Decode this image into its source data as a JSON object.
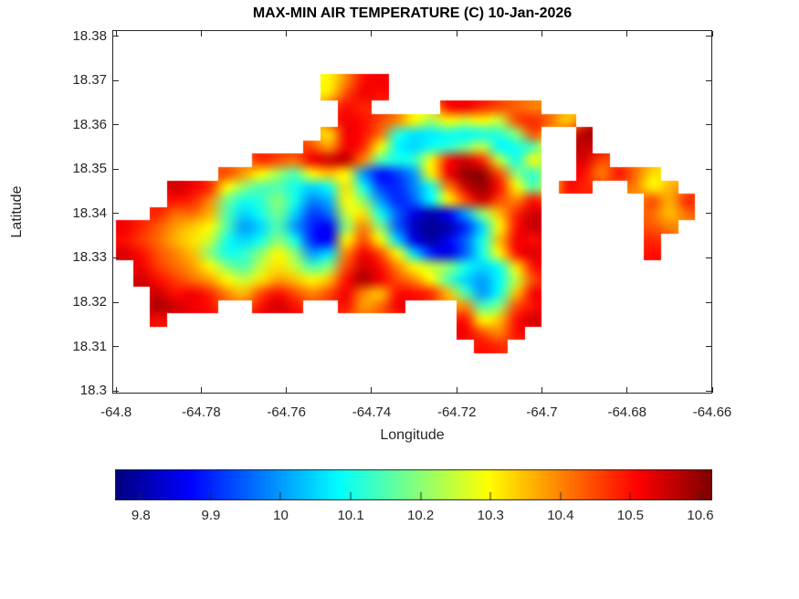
{
  "title": "MAX-MIN AIR TEMPERATURE (C) 10-Jan-2026",
  "xlabel": "Longitude",
  "ylabel": "Latitude",
  "style": {
    "text_color": "#262626",
    "title_color": "#000000",
    "background": "#ffffff"
  },
  "chart_data": {
    "type": "heatmap",
    "title": "MAX-MIN AIR TEMPERATURE (C) 10-Jan-2026",
    "xlabel": "Longitude",
    "ylabel": "Latitude",
    "xlim": [
      -64.8009,
      -64.66
    ],
    "ylim": [
      18.2994,
      18.3814
    ],
    "grid_lines": false,
    "xticks": [
      -64.8,
      -64.78,
      -64.76,
      -64.74,
      -64.72,
      -64.7,
      -64.68,
      -64.66
    ],
    "xtick_labels": [
      "-64.8",
      "-64.78",
      "-64.76",
      "-64.74",
      "-64.72",
      "-64.7",
      "-64.68",
      "-64.66"
    ],
    "yticks": [
      18.3,
      18.31,
      18.32,
      18.33,
      18.34,
      18.35,
      18.36,
      18.37,
      18.38
    ],
    "ytick_labels": [
      "18.3",
      "18.31",
      "18.32",
      "18.33",
      "18.34",
      "18.35",
      "18.36",
      "18.37",
      "18.38"
    ],
    "colorbar": {
      "orientation": "horizontal",
      "position": "south",
      "colormap": "jet",
      "cmin": 9.763,
      "cmax": 10.617,
      "ticks": [
        9.8,
        9.9,
        10,
        10.1,
        10.2,
        10.3,
        10.4,
        10.5,
        10.6
      ],
      "tick_labels": [
        "9.8",
        "9.9",
        "10",
        "10.1",
        "10.2",
        "10.3",
        "10.4",
        "10.5",
        "10.6"
      ]
    },
    "grid": {
      "comment": "MAX-MIN air temperature (C) on a lon/lat grid over St. John USVI; null = ocean",
      "lon_start": -64.798,
      "lon_step": 0.004,
      "lat_start": 18.37,
      "lat_step": -0.003,
      "values": [
        [
          null,
          null,
          null,
          null,
          null,
          null,
          null,
          null,
          null,
          null,
          null,
          null,
          10.3,
          10.4,
          10.5,
          10.52,
          null,
          null,
          null,
          null,
          null,
          null,
          null,
          null,
          null,
          null,
          null,
          null,
          null,
          null,
          null,
          null,
          null,
          null,
          null
        ],
        [
          null,
          null,
          null,
          null,
          null,
          null,
          null,
          null,
          null,
          null,
          null,
          null,
          10.32,
          10.45,
          10.52,
          10.5,
          null,
          null,
          null,
          null,
          null,
          null,
          null,
          null,
          null,
          null,
          null,
          null,
          null,
          null,
          null,
          null,
          null,
          null,
          null
        ],
        [
          null,
          null,
          null,
          null,
          null,
          null,
          null,
          null,
          null,
          null,
          null,
          null,
          null,
          10.5,
          10.48,
          null,
          null,
          null,
          null,
          10.5,
          10.52,
          10.48,
          10.45,
          10.43,
          10.4,
          null,
          null,
          null,
          null,
          null,
          null,
          null,
          null,
          null,
          null
        ],
        [
          null,
          null,
          null,
          null,
          null,
          null,
          null,
          null,
          null,
          null,
          null,
          null,
          null,
          10.52,
          10.5,
          10.45,
          10.4,
          10.3,
          10.22,
          10.3,
          10.26,
          10.3,
          10.25,
          10.45,
          10.48,
          10.42,
          10.33,
          null,
          null,
          null,
          null,
          null,
          null,
          null,
          null
        ],
        [
          null,
          null,
          null,
          null,
          null,
          null,
          null,
          null,
          null,
          null,
          null,
          null,
          10.32,
          10.52,
          10.5,
          10.42,
          10.12,
          10.06,
          10.07,
          10.1,
          10.08,
          10.1,
          10.12,
          10.2,
          10.45,
          null,
          null,
          10.58,
          null,
          null,
          null,
          null,
          null,
          null,
          null
        ],
        [
          null,
          null,
          null,
          null,
          null,
          null,
          null,
          null,
          null,
          null,
          null,
          10.45,
          10.38,
          10.52,
          10.48,
          10.3,
          10.08,
          10.05,
          10.1,
          10.12,
          10.18,
          10.25,
          10.08,
          10.1,
          10.15,
          null,
          null,
          10.56,
          null,
          null,
          null,
          null,
          null,
          null,
          null
        ],
        [
          null,
          null,
          null,
          null,
          null,
          null,
          null,
          null,
          10.48,
          10.45,
          10.42,
          10.52,
          10.55,
          10.56,
          10.4,
          10.15,
          10.1,
          10.12,
          10.3,
          10.5,
          10.55,
          10.48,
          10.25,
          10.1,
          10.3,
          null,
          null,
          10.54,
          10.45,
          null,
          null,
          null,
          null,
          null,
          null
        ],
        [
          null,
          null,
          null,
          null,
          null,
          null,
          10.45,
          10.38,
          10.3,
          10.22,
          10.15,
          10.3,
          10.35,
          10.3,
          10.0,
          9.88,
          9.92,
          10.0,
          10.3,
          10.52,
          10.6,
          10.6,
          10.45,
          10.2,
          10.12,
          null,
          null,
          10.5,
          10.4,
          10.5,
          10.42,
          10.32,
          null,
          null,
          null
        ],
        [
          null,
          null,
          null,
          10.55,
          10.52,
          10.48,
          10.3,
          10.2,
          10.15,
          10.15,
          10.1,
          10.05,
          10.1,
          10.32,
          10.1,
          9.92,
          9.9,
          9.98,
          10.1,
          10.4,
          10.55,
          10.6,
          10.5,
          10.3,
          10.15,
          null,
          10.5,
          10.48,
          null,
          null,
          10.4,
          10.3,
          10.36,
          null,
          null
        ],
        [
          null,
          null,
          null,
          10.5,
          10.48,
          10.4,
          10.18,
          10.1,
          10.12,
          10.2,
          10.1,
          9.98,
          10.02,
          10.3,
          10.2,
          10.0,
          9.9,
          9.95,
          10.08,
          10.3,
          10.45,
          10.55,
          10.45,
          10.4,
          10.5,
          null,
          null,
          null,
          null,
          null,
          null,
          10.45,
          10.36,
          10.48,
          null
        ],
        [
          null,
          null,
          10.48,
          10.42,
          10.42,
          10.36,
          10.15,
          10.05,
          10.1,
          10.18,
          10.05,
          9.92,
          9.96,
          10.25,
          10.32,
          10.1,
          9.95,
          9.85,
          9.8,
          9.86,
          10.0,
          10.2,
          10.35,
          10.48,
          10.55,
          null,
          null,
          null,
          null,
          null,
          null,
          10.42,
          10.35,
          10.42,
          null
        ],
        [
          10.52,
          10.48,
          10.43,
          10.38,
          10.34,
          10.3,
          10.15,
          10.0,
          10.05,
          10.15,
          10.0,
          9.9,
          9.86,
          10.2,
          10.4,
          10.2,
          9.95,
          9.82,
          9.78,
          9.8,
          9.9,
          10.05,
          10.3,
          10.5,
          10.56,
          null,
          null,
          null,
          null,
          null,
          null,
          10.44,
          10.4,
          null,
          null
        ],
        [
          10.5,
          10.46,
          10.42,
          10.36,
          10.32,
          10.25,
          10.1,
          10.05,
          10.1,
          10.2,
          10.1,
          9.9,
          9.87,
          10.3,
          10.45,
          10.3,
          10.05,
          9.85,
          9.79,
          9.86,
          9.95,
          10.1,
          10.35,
          10.52,
          10.5,
          null,
          null,
          null,
          null,
          null,
          null,
          10.48,
          null,
          null,
          null
        ],
        [
          10.54,
          10.5,
          10.44,
          10.4,
          10.35,
          10.2,
          10.1,
          10.12,
          10.2,
          10.3,
          10.2,
          10.0,
          10.05,
          10.4,
          10.52,
          10.45,
          10.3,
          10.05,
          9.9,
          9.85,
          9.95,
          10.1,
          10.3,
          10.5,
          10.54,
          null,
          null,
          null,
          null,
          null,
          null,
          10.5,
          null,
          null,
          null
        ],
        [
          null,
          10.52,
          10.46,
          10.42,
          10.38,
          10.3,
          10.2,
          10.15,
          10.25,
          10.32,
          10.25,
          10.15,
          10.2,
          10.45,
          10.55,
          10.5,
          10.4,
          10.3,
          10.25,
          10.2,
          10.1,
          10.05,
          10.1,
          10.32,
          10.5,
          null,
          null,
          null,
          null,
          null,
          null,
          null,
          null,
          null,
          null
        ],
        [
          null,
          10.55,
          10.5,
          10.46,
          10.42,
          10.38,
          10.3,
          10.25,
          10.32,
          10.38,
          10.35,
          10.3,
          10.35,
          10.5,
          10.58,
          10.52,
          10.45,
          10.4,
          10.3,
          10.15,
          10.05,
          10.0,
          10.08,
          10.25,
          10.45,
          null,
          null,
          null,
          null,
          null,
          null,
          null,
          null,
          null,
          null
        ],
        [
          null,
          null,
          10.55,
          10.5,
          10.52,
          10.48,
          10.4,
          10.35,
          10.45,
          10.5,
          10.45,
          10.4,
          10.45,
          10.52,
          10.4,
          10.35,
          10.5,
          10.5,
          10.48,
          10.35,
          10.15,
          10.0,
          10.1,
          10.35,
          10.52,
          null,
          null,
          null,
          null,
          null,
          null,
          null,
          null,
          null,
          null
        ],
        [
          null,
          null,
          10.58,
          10.55,
          10.52,
          10.5,
          null,
          null,
          10.5,
          10.55,
          10.5,
          null,
          null,
          10.5,
          10.38,
          10.42,
          10.52,
          null,
          null,
          null,
          10.4,
          10.15,
          10.2,
          10.45,
          10.5,
          null,
          null,
          null,
          null,
          null,
          null,
          null,
          null,
          null,
          null
        ],
        [
          null,
          null,
          10.5,
          null,
          null,
          null,
          null,
          null,
          null,
          null,
          null,
          null,
          null,
          null,
          null,
          null,
          null,
          null,
          null,
          null,
          10.5,
          10.3,
          10.35,
          10.5,
          10.55,
          null,
          null,
          null,
          null,
          null,
          null,
          null,
          null,
          null,
          null
        ],
        [
          null,
          null,
          null,
          null,
          null,
          null,
          null,
          null,
          null,
          null,
          null,
          null,
          null,
          null,
          null,
          null,
          null,
          null,
          null,
          null,
          10.52,
          10.45,
          10.4,
          10.5,
          null,
          null,
          null,
          null,
          null,
          null,
          null,
          null,
          null,
          null,
          null
        ],
        [
          null,
          null,
          null,
          null,
          null,
          null,
          null,
          null,
          null,
          null,
          null,
          null,
          null,
          null,
          null,
          null,
          null,
          null,
          null,
          null,
          null,
          10.5,
          10.48,
          null,
          null,
          null,
          null,
          null,
          null,
          null,
          null,
          null,
          null,
          null,
          null
        ]
      ]
    }
  }
}
